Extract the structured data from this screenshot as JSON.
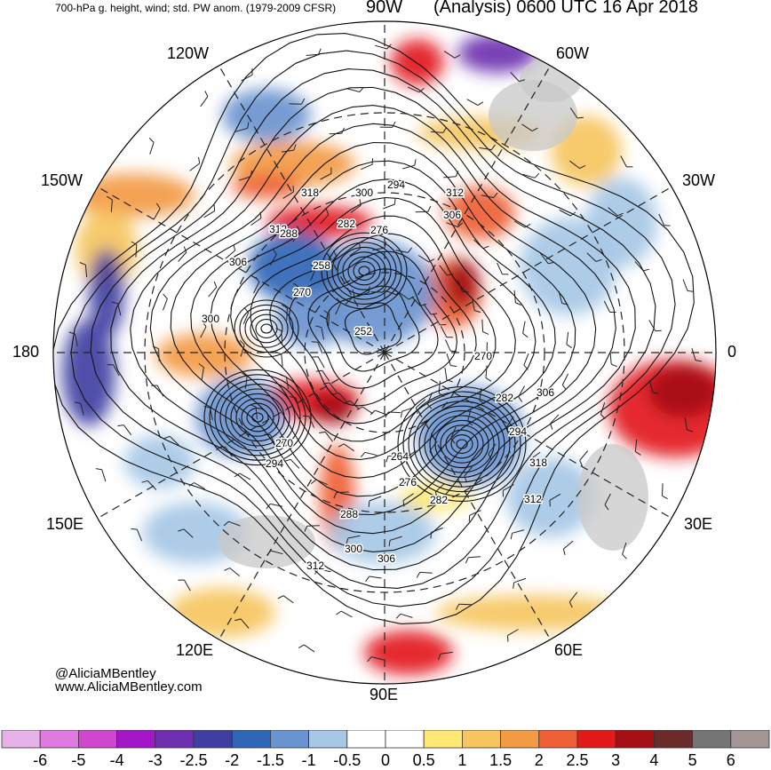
{
  "header": {
    "left_title": "700-hPa g. height, wind; std. PW anom. (1979-2009 CFSR)",
    "top_lon_label": "90W",
    "right_title": "(Analysis) 0600 UTC 16 Apr 2018"
  },
  "longitude_labels": {
    "lon_120w": "120W",
    "lon_60w": "60W",
    "lon_150w": "150W",
    "lon_30w": "30W",
    "lon_180": "180",
    "lon_0": "0",
    "lon_150e": "150E",
    "lon_30e": "30E",
    "lon_120e": "120E",
    "lon_60e": "60E",
    "lon_90e": "90E"
  },
  "height_contour_labels": [
    "318",
    "300",
    "294",
    "312",
    "306",
    "312",
    "282",
    "276",
    "288",
    "258",
    "270",
    "306",
    "300",
    "252",
    "270",
    "282",
    "306",
    "294",
    "270",
    "294",
    "264",
    "276",
    "282",
    "312",
    "318",
    "288",
    "300",
    "306",
    "312"
  ],
  "credit": {
    "twitter": "@AliciaMBentley",
    "website": "www.AliciaMBentley.com"
  },
  "colorbar": {
    "labels": [
      "-6",
      "-5",
      "-4",
      "-3",
      "-2.5",
      "-2",
      "-1.5",
      "-1",
      "-0.5",
      "0",
      "0.5",
      "1",
      "1.5",
      "2",
      "2.5",
      "3",
      "4",
      "5",
      "6"
    ],
    "colors": [
      "#e7b2e7",
      "#e07ae0",
      "#cf46cf",
      "#a417c9",
      "#6e2fb0",
      "#3f3fa3",
      "#3066b8",
      "#6a94cf",
      "#a6c8e6",
      "#ffffff",
      "#ffffff",
      "#ffe873",
      "#f6c55e",
      "#f39a45",
      "#ef5f35",
      "#e31a1c",
      "#a50f15",
      "#6b2b2b",
      "#757575",
      "#a39696"
    ]
  },
  "colors": {
    "land_gray": "#c8c8c8",
    "neutral_white": "#ffffff"
  }
}
